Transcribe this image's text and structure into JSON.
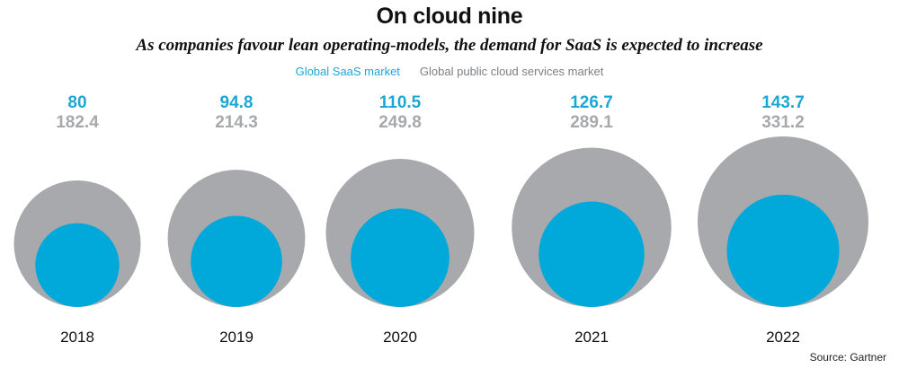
{
  "title": "On cloud nine",
  "subtitle": "As companies favour lean operating-models, the demand for SaaS is expected to increase",
  "source": "Source: Gartner",
  "chart_data": {
    "type": "bubble",
    "categories": [
      "2018",
      "2019",
      "2020",
      "2021",
      "2022"
    ],
    "series": [
      {
        "name": "Global SaaS market",
        "color": "#00a9d9",
        "values": [
          80,
          94.8,
          110.5,
          126.7,
          143.7
        ]
      },
      {
        "name": "Global public cloud services market",
        "color": "#a7a9ac",
        "values": [
          182.4,
          214.3,
          249.8,
          289.1,
          331.2
        ]
      }
    ],
    "legend_position": "top-center",
    "value_label_colors": {
      "saas": "#1ca8d6",
      "cloud": "#a7a9ac"
    }
  }
}
